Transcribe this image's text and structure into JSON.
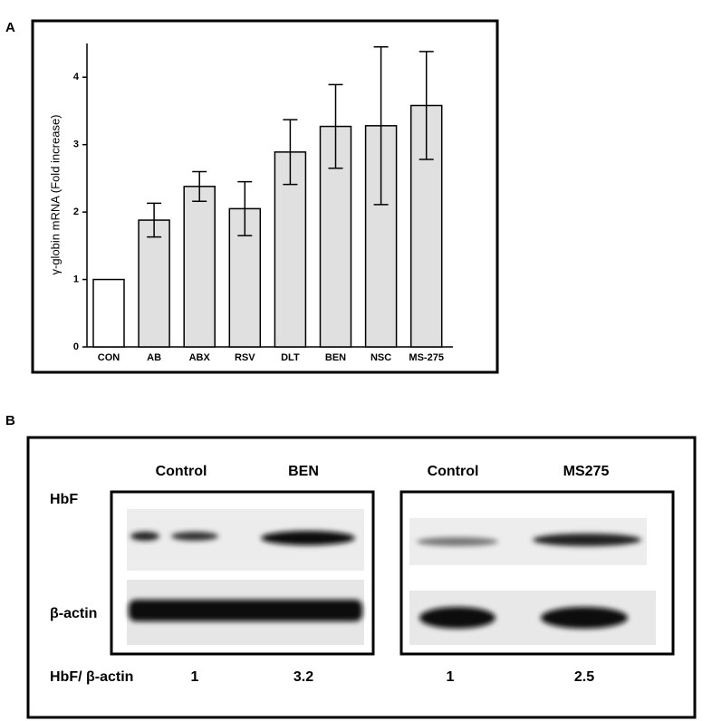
{
  "panel_labels": [
    "A",
    "B"
  ],
  "chart_data": {
    "type": "bar",
    "y_label": "γ-globin mRNA (Fold increase)",
    "categories": [
      "CON",
      "AB",
      "ABX",
      "RSV",
      "DLT",
      "BEN",
      "NSC",
      "MS-275"
    ],
    "values": [
      1,
      1.88,
      2.38,
      2.05,
      2.89,
      3.27,
      3.28,
      3.58
    ],
    "errors": [
      null,
      0.25,
      0.22,
      0.4,
      0.48,
      0.62,
      1.17,
      0.8
    ],
    "colors": [
      "#ffffff",
      "#e0e0e0",
      "#e0e0e0",
      "#e0e0e0",
      "#e0e0e0",
      "#e0e0e0",
      "#e0e0e0",
      "#e0e0e0"
    ],
    "ylim": [
      0,
      4.5
    ],
    "yticks": [
      0,
      1,
      2,
      3,
      4
    ],
    "grid": false
  },
  "blot": {
    "groups": [
      {
        "columns": [
          "Control",
          "BEN"
        ],
        "ratios": [
          1,
          3.2
        ]
      },
      {
        "columns": [
          "Control",
          "MS275"
        ],
        "ratios": [
          1,
          2.5
        ]
      }
    ],
    "rows": [
      "HbF",
      "β-actin"
    ],
    "ratio_label": "HbF/ β-actin"
  }
}
